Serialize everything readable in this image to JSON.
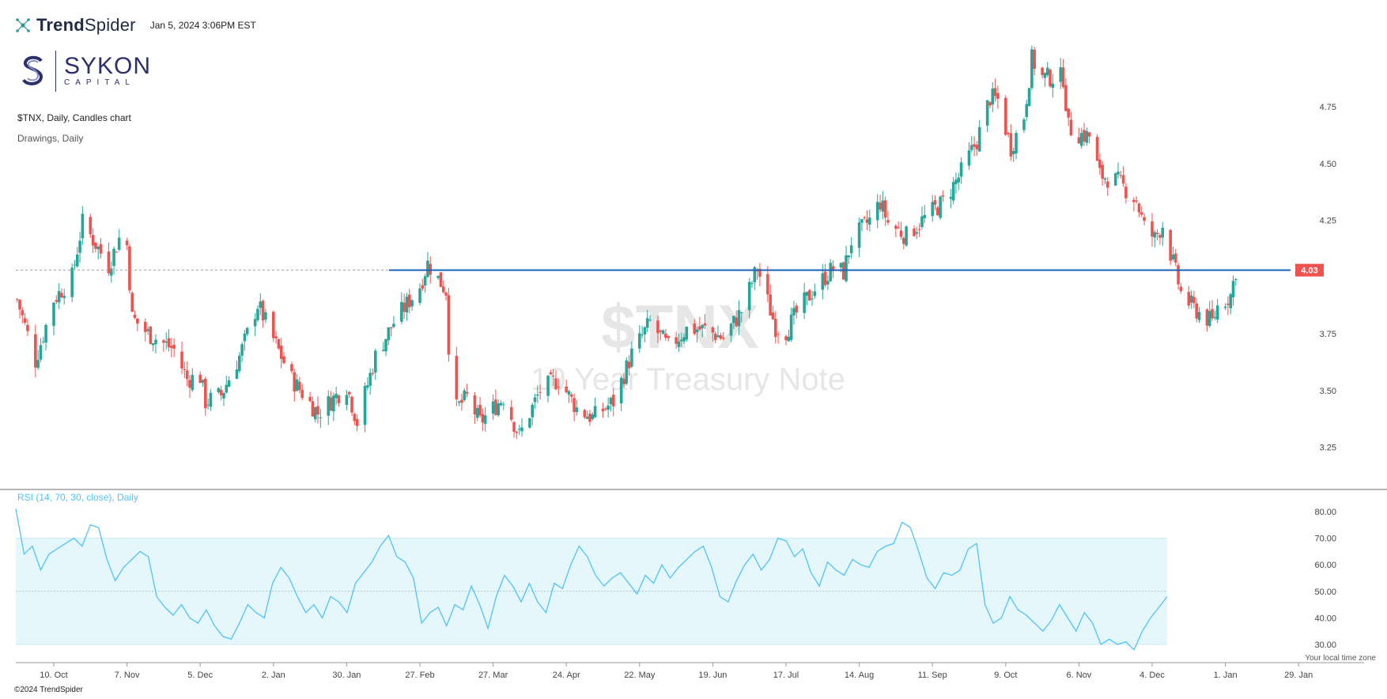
{
  "header": {
    "brand": "TrendSpider",
    "brand_icon": "network-nodes-icon",
    "timestamp": "Jan 5, 2024 3:06PM EST",
    "logo_name": "SYKON",
    "logo_sub": "CAPITAL"
  },
  "chart_title": "$TNX, Daily, Candles chart",
  "drawings_label": "Drawings, Daily",
  "watermark": {
    "symbol": "$TNX",
    "name": "10 Year Treasury Note"
  },
  "rsi_label": "RSI (14, 70, 30, close), Daily",
  "timezone_note": "Your local time zone",
  "copyright": "©2024 TrendSpider",
  "colors": {
    "up": "#26a69a",
    "down": "#ef5350",
    "level_line": "#1e63b8",
    "rsi_line": "#4fc3f7",
    "rsi_band": "#e6f7fb",
    "price_badge": "#ef5350"
  },
  "chart_data": [
    {
      "type": "candlestick",
      "title": "$TNX, Daily, Candles chart",
      "y_ticks": [
        "4.75",
        "4.50",
        "4.25",
        "3.75",
        "3.50",
        "3.25"
      ],
      "ylim": [
        3.2,
        5.0
      ],
      "current_price_label": "4.03",
      "horizontal_level": 4.03,
      "x_ticks": [
        "10. Oct",
        "7. Nov",
        "5. Dec",
        "2. Jan",
        "30. Jan",
        "27. Feb",
        "27. Mar",
        "24. Apr",
        "22. May",
        "19. Jun",
        "17. Jul",
        "14. Aug",
        "11. Sep",
        "9. Oct",
        "6. Nov",
        "4. Dec",
        "1. Jan",
        "29. Jan"
      ],
      "close_path": [
        [
          "Sep 26",
          3.9
        ],
        [
          "Oct 3",
          3.63
        ],
        [
          "Oct 10",
          3.9
        ],
        [
          "Oct 17",
          4.0
        ],
        [
          "Oct 21",
          4.24
        ],
        [
          "Oct 31",
          4.05
        ],
        [
          "Nov 4",
          4.17
        ],
        [
          "Nov 7",
          4.14
        ],
        [
          "Nov 9",
          3.82
        ],
        [
          "Nov 15",
          3.75
        ],
        [
          "Nov 25",
          3.68
        ],
        [
          "Nov 30",
          3.55
        ],
        [
          "Dec 5",
          3.56
        ],
        [
          "Dec 7",
          3.45
        ],
        [
          "Dec 13",
          3.48
        ],
        [
          "Dec 20",
          3.65
        ],
        [
          "Dec 27",
          3.88
        ],
        [
          "Jan 3",
          3.7
        ],
        [
          "Jan 9",
          3.55
        ],
        [
          "Jan 19",
          3.4
        ],
        [
          "Jan 30",
          3.52
        ],
        [
          "Feb 3",
          3.36
        ],
        [
          "Feb 10",
          3.65
        ],
        [
          "Feb 17",
          3.8
        ],
        [
          "Feb 27",
          3.96
        ],
        [
          "Mar 2",
          4.06
        ],
        [
          "Mar 9",
          3.94
        ],
        [
          "Mar 10",
          3.7
        ],
        [
          "Mar 13",
          3.42
        ],
        [
          "Mar 17",
          3.47
        ],
        [
          "Mar 22",
          3.36
        ],
        [
          "Mar 31",
          3.47
        ],
        [
          "Apr 6",
          3.3
        ],
        [
          "Apr 14",
          3.5
        ],
        [
          "Apr 21",
          3.55
        ],
        [
          "Apr 28",
          3.42
        ],
        [
          "May 4",
          3.38
        ],
        [
          "May 12",
          3.45
        ],
        [
          "May 19",
          3.66
        ],
        [
          "May 26",
          3.8
        ],
        [
          "Jun 2",
          3.69
        ],
        [
          "Jun 9",
          3.77
        ],
        [
          "Jun 16",
          3.77
        ],
        [
          "Jun 23",
          3.73
        ],
        [
          "Jun 30",
          3.85
        ],
        [
          "Jul 6",
          4.04
        ],
        [
          "Jul 13",
          3.78
        ],
        [
          "Jul 17",
          3.76
        ],
        [
          "Jul 21",
          3.84
        ],
        [
          "Jul 28",
          3.95
        ],
        [
          "Aug 4",
          4.04
        ],
        [
          "Aug 8",
          4.02
        ],
        [
          "Aug 11",
          4.16
        ],
        [
          "Aug 18",
          4.25
        ],
        [
          "Aug 22",
          4.33
        ],
        [
          "Aug 25",
          4.24
        ],
        [
          "Sep 1",
          4.18
        ],
        [
          "Sep 8",
          4.26
        ],
        [
          "Sep 15",
          4.33
        ],
        [
          "Sep 21",
          4.44
        ],
        [
          "Sep 28",
          4.6
        ],
        [
          "Oct 3",
          4.79
        ],
        [
          "Oct 6",
          4.78
        ],
        [
          "Oct 11",
          4.57
        ],
        [
          "Oct 16",
          4.71
        ],
        [
          "Oct 19",
          4.96
        ],
        [
          "Oct 23",
          4.88
        ],
        [
          "Oct 31",
          4.88
        ],
        [
          "Nov 2",
          4.66
        ],
        [
          "Nov 6",
          4.63
        ],
        [
          "Nov 10",
          4.62
        ],
        [
          "Nov 14",
          4.45
        ],
        [
          "Nov 21",
          4.42
        ],
        [
          "Nov 28",
          4.34
        ],
        [
          "Dec 1",
          4.22
        ],
        [
          "Dec 5",
          4.17
        ],
        [
          "Dec 8",
          4.23
        ],
        [
          "Dec 13",
          4.02
        ],
        [
          "Dec 15",
          3.93
        ],
        [
          "Dec 20",
          3.86
        ],
        [
          "Dec 27",
          3.8
        ],
        [
          "Dec 29",
          3.87
        ],
        [
          "Jan 3",
          3.92
        ],
        [
          "Jan 5",
          4.03
        ]
      ]
    },
    {
      "type": "line",
      "title": "RSI (14, 70, 30, close), Daily",
      "y_ticks": [
        "80.00",
        "70.00",
        "60.00",
        "50.00",
        "40.00",
        "30.00"
      ],
      "ylim": [
        27,
        84
      ],
      "band": [
        30,
        70
      ],
      "midline": 50,
      "series": [
        {
          "values": [
            81,
            64,
            67,
            58,
            64,
            66,
            68,
            70,
            67,
            75,
            74,
            62,
            54,
            59,
            62,
            65,
            63,
            48,
            44,
            41,
            45,
            40,
            38,
            43,
            37,
            33,
            32,
            38,
            45,
            42,
            40,
            53,
            59,
            55,
            48,
            42,
            45,
            40,
            48,
            46,
            42,
            53,
            57,
            61,
            67,
            71,
            63,
            61,
            55,
            38,
            42,
            44,
            37,
            45,
            43,
            52,
            45,
            36,
            48,
            56,
            52,
            46,
            53,
            46,
            42,
            53,
            51,
            60,
            67,
            63,
            56,
            52,
            55,
            57,
            53,
            49,
            56,
            53,
            60,
            55,
            59,
            62,
            65,
            67,
            59,
            48,
            46,
            54,
            60,
            64,
            58,
            62,
            70,
            69,
            63,
            66,
            57,
            52,
            61,
            58,
            56,
            62,
            60,
            59,
            65,
            67,
            68,
            76,
            74,
            65,
            55,
            51,
            57,
            56,
            58,
            66,
            68,
            45,
            38,
            40,
            48,
            43,
            41,
            38,
            35,
            39,
            45,
            40,
            35,
            42,
            38,
            30,
            32,
            30,
            31,
            28,
            35,
            40,
            44,
            48
          ]
        }
      ]
    }
  ]
}
